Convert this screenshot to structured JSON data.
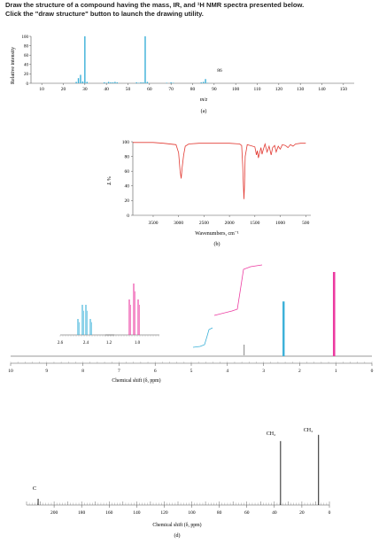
{
  "question": {
    "line1": "Draw the structure of a compound having the mass, IR, and ¹H NMR spectra presented below.",
    "line2": "Click the \"draw structure\" button to launch the drawing utility."
  },
  "panels": {
    "a": "(a)",
    "b": "(b)",
    "d": "(d)"
  },
  "chart_data": [
    {
      "type": "bar",
      "panel": "(a)",
      "title": "",
      "xlabel": "m/z",
      "ylabel": "Relative intensity",
      "xlim": [
        5,
        155
      ],
      "ylim": [
        0,
        100
      ],
      "x_ticks": [
        10,
        20,
        30,
        40,
        50,
        60,
        70,
        80,
        90,
        100,
        110,
        120,
        130,
        140,
        150
      ],
      "y_ticks": [
        0,
        20,
        40,
        60,
        80,
        100
      ],
      "annotations": [
        "86"
      ],
      "x": [
        26,
        27,
        28,
        29,
        30,
        31,
        39,
        40,
        41,
        42,
        43,
        44,
        45,
        54,
        55,
        56,
        57,
        58,
        59,
        68,
        70,
        71,
        84,
        85,
        86,
        87
      ],
      "values": [
        3,
        11,
        18,
        4,
        100,
        3,
        2,
        1,
        3,
        2,
        2,
        3,
        2,
        2,
        1,
        2,
        2,
        100,
        3,
        1,
        2,
        1,
        2,
        3,
        9,
        1
      ]
    },
    {
      "type": "line",
      "panel": "(b)",
      "title": "",
      "xlabel": "Wavenumbers, cm⁻¹",
      "ylabel": "% T",
      "xlim": [
        3900,
        400
      ],
      "ylim": [
        0,
        100
      ],
      "x_ticks": [
        3500,
        3000,
        2500,
        2000,
        1500,
        1000,
        500
      ],
      "y_ticks": [
        0,
        20,
        40,
        60,
        80,
        100
      ],
      "x": [
        3900,
        3500,
        3300,
        3050,
        3000,
        2970,
        2950,
        2930,
        2900,
        2870,
        2800,
        2600,
        2400,
        2200,
        2000,
        1800,
        1760,
        1740,
        1725,
        1715,
        1705,
        1690,
        1650,
        1500,
        1470,
        1450,
        1430,
        1380,
        1360,
        1340,
        1300,
        1260,
        1220,
        1180,
        1150,
        1110,
        1080,
        1040,
        1000,
        960,
        900,
        850,
        800,
        750,
        700,
        600,
        500
      ],
      "values": [
        99,
        99,
        98,
        96,
        85,
        60,
        50,
        65,
        82,
        94,
        97,
        98,
        98,
        98,
        98,
        97,
        95,
        70,
        40,
        22,
        40,
        80,
        96,
        93,
        82,
        88,
        78,
        92,
        83,
        88,
        97,
        86,
        94,
        82,
        92,
        95,
        86,
        94,
        90,
        96,
        95,
        92,
        96,
        94,
        97,
        98,
        98
      ]
    },
    {
      "type": "line",
      "panel": "(c)",
      "title": "",
      "xlabel": "Chemical shift (δ, ppm)",
      "ylabel": "",
      "xlim": [
        10,
        0
      ],
      "x_ticks": [
        10,
        9,
        8,
        7,
        6,
        5,
        4,
        3,
        2,
        1,
        0
      ],
      "inset_left_ticks": [
        "2.6",
        "2.4"
      ],
      "inset_right_ticks": [
        "1.2",
        "1.0"
      ],
      "series": [
        {
          "x": [
            2.45
          ],
          "values": [
            65
          ]
        },
        {
          "x": [
            1.05
          ],
          "values": [
            100
          ]
        }
      ]
    },
    {
      "type": "line",
      "panel": "(d)",
      "title": "",
      "xlabel": "Chemical shift (δ, ppm)",
      "ylabel": "",
      "xlim": [
        220,
        0
      ],
      "x_ticks": [
        200,
        180,
        160,
        140,
        120,
        100,
        80,
        60,
        40,
        20,
        0
      ],
      "annotations": [
        "CH₂",
        "CH₃",
        "C"
      ],
      "series": [
        {
          "name": "CH₂",
          "x": [
            35.5
          ],
          "values": [
            82
          ]
        },
        {
          "name": "CH₃",
          "x": [
            7.9
          ],
          "values": [
            90
          ]
        },
        {
          "name": "C",
          "x": [
            211.6
          ],
          "values": [
            8
          ]
        }
      ]
    }
  ],
  "colors": {
    "ms": "#3ab0d8",
    "ir": "#e23a33",
    "nmr_cyan": "#3ab0d8",
    "nmr_pink": "#ec3aa0",
    "nmr_c_peaks": "#222222"
  }
}
